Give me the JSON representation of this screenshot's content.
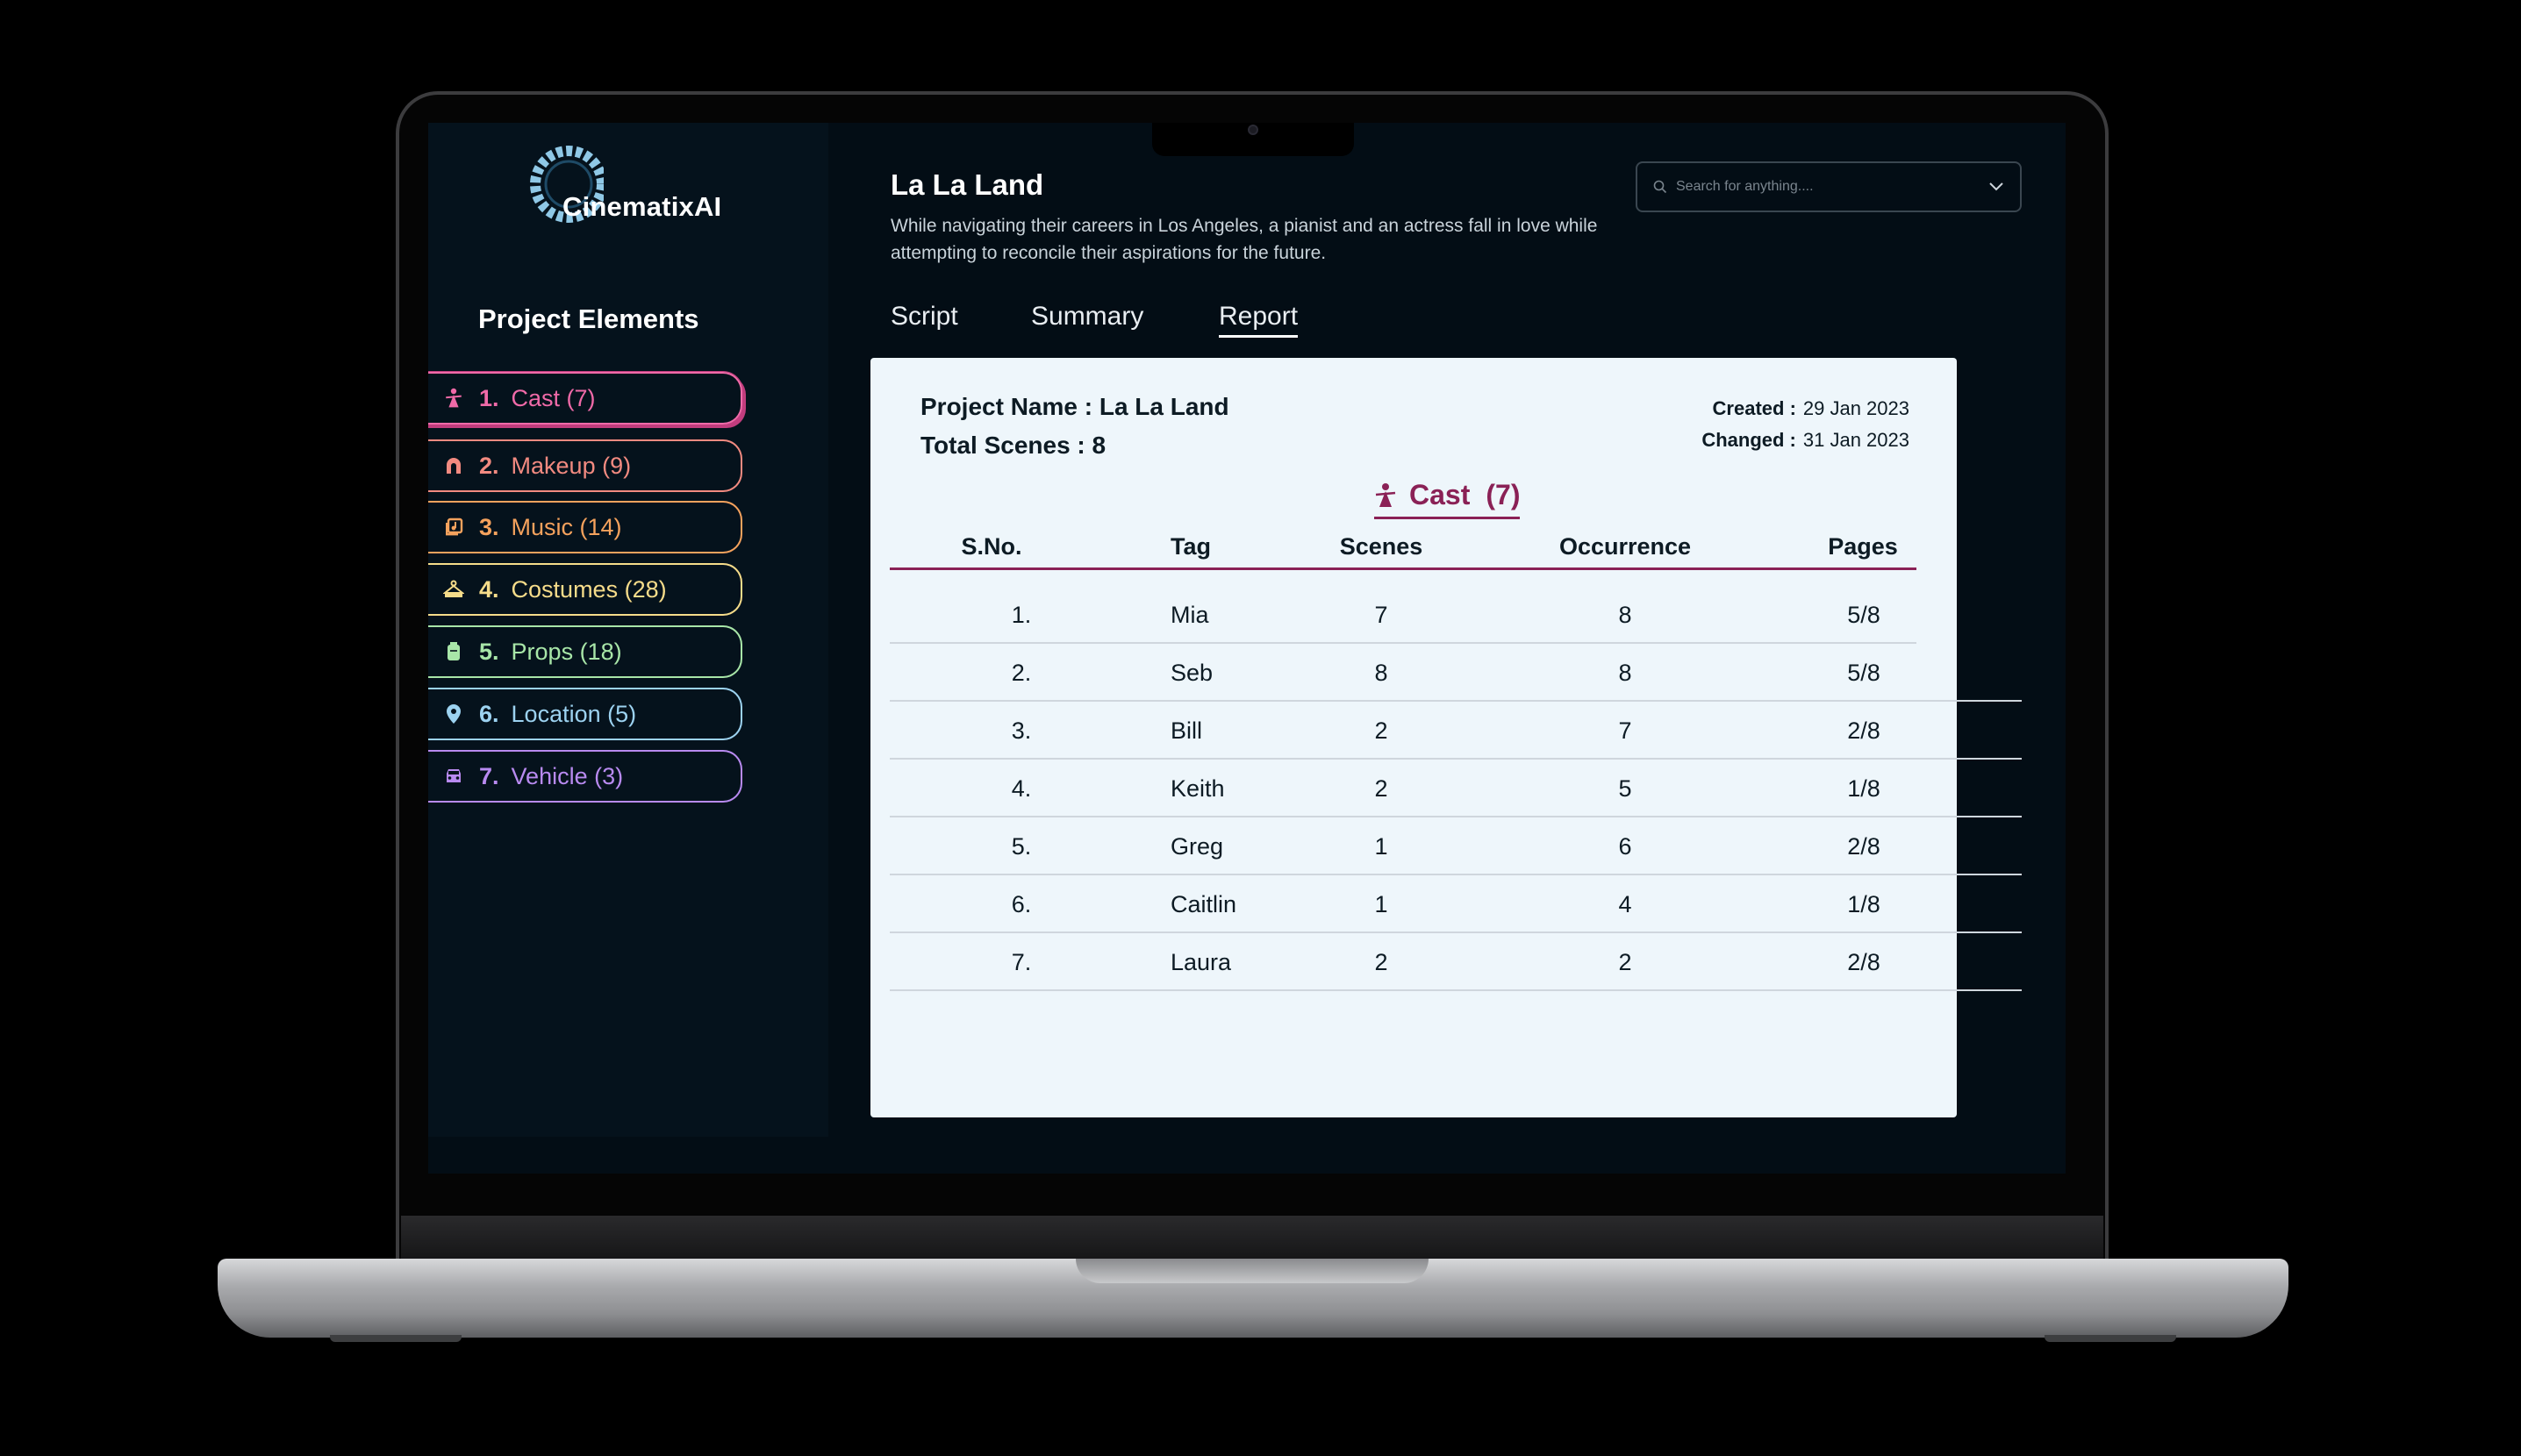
{
  "app": {
    "logo_text": "CinematixAI",
    "sidebar_title": "Project Elements"
  },
  "sidebar": {
    "items": [
      {
        "num": "1.",
        "label": "Cast (7)",
        "icon": "cast-icon",
        "color": "#f06aa8"
      },
      {
        "num": "2.",
        "label": "Makeup (9)",
        "icon": "makeup-icon",
        "color": "#f28a80"
      },
      {
        "num": "3.",
        "label": "Music (14)",
        "icon": "music-icon",
        "color": "#f5a25d"
      },
      {
        "num": "4.",
        "label": "Costumes (28)",
        "icon": "costumes-icon",
        "color": "#f6dc8a"
      },
      {
        "num": "5.",
        "label": "Props (18)",
        "icon": "props-icon",
        "color": "#a8e6a8"
      },
      {
        "num": "6.",
        "label": "Location (5)",
        "icon": "location-icon",
        "color": "#9cd2f0"
      },
      {
        "num": "7.",
        "label": "Vehicle (3)",
        "icon": "vehicle-icon",
        "color": "#b88af0"
      }
    ]
  },
  "header": {
    "title": "La La Land",
    "description": "While navigating their careers in Los Angeles, a pianist and an actress fall in love while attempting to reconcile their aspirations for the future.",
    "search_placeholder": "Search for anything...."
  },
  "tabs": [
    {
      "label": "Script",
      "active": false
    },
    {
      "label": "Summary",
      "active": false
    },
    {
      "label": "Report",
      "active": true
    }
  ],
  "report": {
    "project_name": "Project Name : La La Land",
    "total_scenes": "Total Scenes : 8",
    "created_label": "Created :",
    "created_value": "29 Jan 2023",
    "changed_label": "Changed :",
    "changed_value": "31 Jan 2023",
    "section_title": "Cast",
    "section_count": "(7)",
    "columns": [
      "S.No.",
      "Tag",
      "Scenes",
      "Occurrence",
      "Pages"
    ],
    "rows": [
      {
        "sno": "1.",
        "tag": "Mia",
        "scenes": "7",
        "occurrence": "8",
        "pages": "5/8"
      },
      {
        "sno": "2.",
        "tag": "Seb",
        "scenes": "8",
        "occurrence": "8",
        "pages": "5/8"
      },
      {
        "sno": "3.",
        "tag": "Bill",
        "scenes": "2",
        "occurrence": "7",
        "pages": "2/8"
      },
      {
        "sno": "4.",
        "tag": "Keith",
        "scenes": "2",
        "occurrence": "5",
        "pages": "1/8"
      },
      {
        "sno": "5.",
        "tag": "Greg",
        "scenes": "1",
        "occurrence": "6",
        "pages": "2/8"
      },
      {
        "sno": "6.",
        "tag": "Caitlin",
        "scenes": "1",
        "occurrence": "4",
        "pages": "1/8"
      },
      {
        "sno": "7.",
        "tag": "Laura",
        "scenes": "2",
        "occurrence": "2",
        "pages": "2/8"
      }
    ]
  },
  "colors": {
    "accent": "#8a2156",
    "screen_bg": "#030d15",
    "card_bg": "#eef6fb"
  }
}
